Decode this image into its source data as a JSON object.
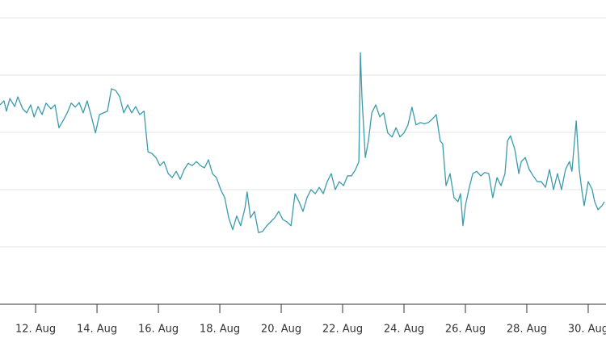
{
  "chart_data": {
    "type": "line",
    "x": [
      10.84,
      10.97,
      11.05,
      11.16,
      11.32,
      11.42,
      11.58,
      11.71,
      11.84,
      11.95,
      12.08,
      12.21,
      12.34,
      12.5,
      12.63,
      12.76,
      12.89,
      13.03,
      13.16,
      13.29,
      13.42,
      13.55,
      13.68,
      13.82,
      13.95,
      14.08,
      14.21,
      14.34,
      14.47,
      14.61,
      14.74,
      14.87,
      15.0,
      15.13,
      15.26,
      15.39,
      15.53,
      15.66,
      15.79,
      15.92,
      16.05,
      16.18,
      16.32,
      16.45,
      16.58,
      16.71,
      16.84,
      16.97,
      17.1,
      17.24,
      17.37,
      17.5,
      17.63,
      17.76,
      17.89,
      18.03,
      18.16,
      18.29,
      18.42,
      18.55,
      18.68,
      18.82,
      18.89,
      19.0,
      19.13,
      19.26,
      19.39,
      19.53,
      19.66,
      19.79,
      19.92,
      20.05,
      20.18,
      20.32,
      20.45,
      20.58,
      20.71,
      20.84,
      20.97,
      21.11,
      21.24,
      21.37,
      21.5,
      21.63,
      21.76,
      21.89,
      22.03,
      22.16,
      22.29,
      22.42,
      22.53,
      22.58,
      22.63,
      22.74,
      22.84,
      22.95,
      23.08,
      23.21,
      23.34,
      23.47,
      23.61,
      23.74,
      23.87,
      24.0,
      24.13,
      24.26,
      24.39,
      24.53,
      24.66,
      24.79,
      24.92,
      25.05,
      25.18,
      25.26,
      25.37,
      25.5,
      25.63,
      25.76,
      25.84,
      25.92,
      26.0,
      26.11,
      26.24,
      26.37,
      26.5,
      26.63,
      26.76,
      26.89,
      27.03,
      27.16,
      27.29,
      27.37,
      27.47,
      27.61,
      27.74,
      27.82,
      27.95,
      28.08,
      28.21,
      28.34,
      28.47,
      28.61,
      28.74,
      28.87,
      29.0,
      29.13,
      29.26,
      29.39,
      29.47,
      29.61,
      29.71,
      29.79,
      29.87,
      30.0,
      30.13,
      30.21,
      30.32,
      30.45,
      30.53
    ],
    "series": [
      {
        "color": "#3a9bab",
        "values": [
          3.48,
          3.55,
          3.37,
          3.59,
          3.45,
          3.62,
          3.41,
          3.34,
          3.48,
          3.27,
          3.45,
          3.31,
          3.51,
          3.41,
          3.48,
          3.08,
          3.2,
          3.34,
          3.51,
          3.44,
          3.52,
          3.34,
          3.55,
          3.27,
          2.99,
          3.31,
          3.34,
          3.37,
          3.76,
          3.73,
          3.62,
          3.34,
          3.48,
          3.34,
          3.45,
          3.31,
          3.37,
          2.66,
          2.63,
          2.56,
          2.42,
          2.49,
          2.28,
          2.21,
          2.32,
          2.18,
          2.35,
          2.46,
          2.42,
          2.49,
          2.42,
          2.38,
          2.52,
          2.28,
          2.21,
          2.0,
          1.86,
          1.51,
          1.3,
          1.54,
          1.37,
          1.68,
          1.96,
          1.51,
          1.62,
          1.25,
          1.27,
          1.37,
          1.44,
          1.51,
          1.62,
          1.48,
          1.44,
          1.37,
          1.93,
          1.79,
          1.62,
          1.86,
          2.0,
          1.93,
          2.04,
          1.93,
          2.14,
          2.28,
          2.0,
          2.14,
          2.07,
          2.24,
          2.24,
          2.35,
          2.49,
          4.39,
          3.62,
          2.56,
          2.85,
          3.34,
          3.48,
          3.27,
          3.34,
          2.99,
          2.92,
          3.08,
          2.92,
          2.99,
          3.13,
          3.44,
          3.13,
          3.17,
          3.15,
          3.17,
          3.23,
          3.31,
          2.85,
          2.8,
          2.07,
          2.28,
          1.86,
          1.79,
          1.93,
          1.37,
          1.72,
          2.0,
          2.28,
          2.32,
          2.24,
          2.3,
          2.28,
          1.86,
          2.21,
          2.07,
          2.28,
          2.85,
          2.94,
          2.7,
          2.28,
          2.49,
          2.56,
          2.35,
          2.24,
          2.14,
          2.14,
          2.04,
          2.35,
          2.0,
          2.28,
          2.0,
          2.35,
          2.49,
          2.32,
          3.2,
          2.35,
          2.0,
          1.72,
          2.14,
          2.0,
          1.79,
          1.65,
          1.72,
          1.79
        ]
      }
    ],
    "xlim": [
      10.84,
      30.58
    ],
    "xticks": [
      {
        "value": 12,
        "label": "12. Aug"
      },
      {
        "value": 14,
        "label": "14. Aug"
      },
      {
        "value": 16,
        "label": "16. Aug"
      },
      {
        "value": 18,
        "label": "18. Aug"
      },
      {
        "value": 20,
        "label": "20. Aug"
      },
      {
        "value": 22,
        "label": "22. Aug"
      },
      {
        "value": 24,
        "label": "24. Aug"
      },
      {
        "value": 26,
        "label": "26. Aug"
      },
      {
        "value": 28,
        "label": "28. Aug"
      },
      {
        "value": 30,
        "label": "30. Aug"
      }
    ],
    "ylim": [
      0,
      5
    ],
    "y_grid": [
      1,
      2,
      3,
      4,
      5
    ],
    "grid": true
  }
}
